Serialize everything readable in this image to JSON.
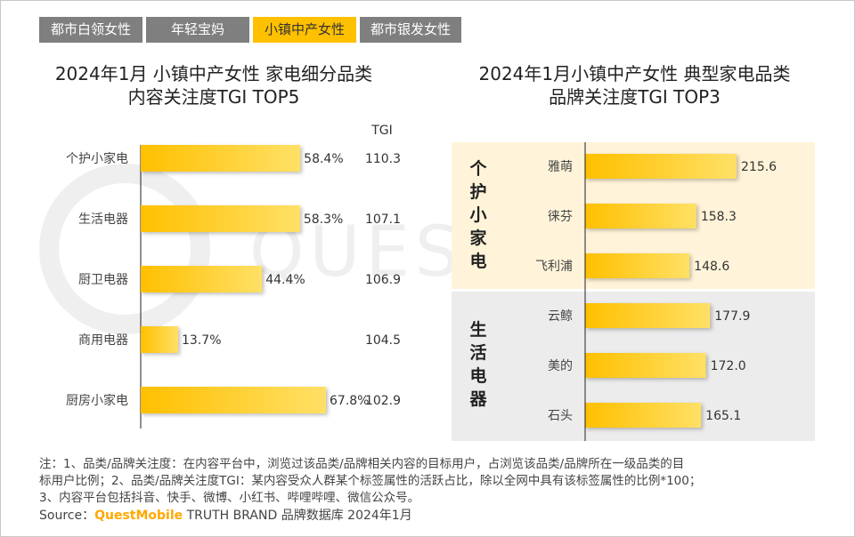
{
  "tabs": [
    {
      "label": "都市白领女性",
      "active": false
    },
    {
      "label": "年轻宝妈",
      "active": false
    },
    {
      "label": "小镇中产女性",
      "active": true
    },
    {
      "label": "都市银发女性",
      "active": false
    }
  ],
  "watermark": "QUESTMOBILE",
  "colors": {
    "bar": "#ffc000",
    "bar_light": "#ffe066",
    "panel_top": "#fff4d9",
    "panel_bottom": "#ececec",
    "tab_inactive": "#7f7f7f"
  },
  "chart_data": [
    {
      "type": "bar",
      "title_line1": "2024年1月 小镇中产女性 家电细分品类",
      "title_line2": "内容关注度TGI TOP5",
      "tgi_header": "TGI",
      "categories": [
        "个护小家电",
        "生活电器",
        "厨卫电器",
        "商用电器",
        "厨房小家电"
      ],
      "values": [
        58.4,
        58.3,
        44.4,
        13.7,
        67.8
      ],
      "value_labels": [
        "58.4%",
        "58.3%",
        "44.4%",
        "13.7%",
        "67.8%"
      ],
      "tgi": [
        "110.3",
        "107.1",
        "106.9",
        "104.5",
        "102.9"
      ],
      "unit": "%"
    },
    {
      "type": "bar",
      "title_line1": "2024年1月小镇中产女性 典型家电品类",
      "title_line2": "品牌关注度TGI TOP3",
      "groups": [
        {
          "name": "个护小家电",
          "brands": [
            "雅萌",
            "徕芬",
            "飞利浦"
          ],
          "values": [
            215.6,
            158.3,
            148.6
          ]
        },
        {
          "name": "生活电器",
          "brands": [
            "云鲸",
            "美的",
            "石头"
          ],
          "values": [
            177.9,
            172.0,
            165.1
          ]
        }
      ]
    }
  ],
  "notes": {
    "line1": "注：1、品类/品牌关注度：在内容平台中，浏览过该品类/品牌相关内容的目标用户，占浏览该品类/品牌所在一级品类的目",
    "line2": "标用户比例；2、品类/品牌关注度TGI：某内容受众人群某个标签属性的活跃占比，除以全网中具有该标签属性的比例*100；",
    "line3": "3、内容平台包括抖音、快手、微博、小红书、哔哩哔哩、微信公众号。",
    "source_label": "Source：",
    "source_brand": "QuestMobile",
    "source_rest": " TRUTH BRAND 品牌数据库 2024年1月"
  }
}
